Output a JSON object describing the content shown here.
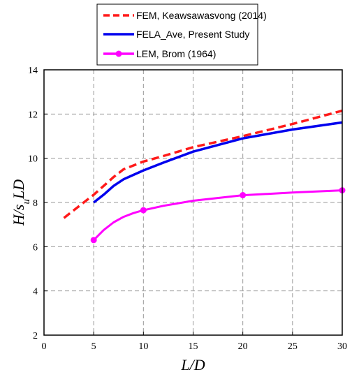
{
  "chart_data": {
    "type": "line",
    "xlim": [
      0,
      30
    ],
    "ylim": [
      2,
      14
    ],
    "xticks": [
      0,
      5,
      10,
      15,
      20,
      25,
      30
    ],
    "yticks": [
      2,
      4,
      6,
      8,
      10,
      12,
      14
    ],
    "xlabel": "L/D",
    "ylabel": "H/s_u LD",
    "ylabel_parts": {
      "pre": "H/s",
      "sub": "u",
      "post": "LD"
    },
    "grid": true,
    "legend_position": "top-center",
    "series": [
      {
        "name": "FEM, Keawsawasvong (2014)",
        "color": "#ff1a1a",
        "style": "dashed",
        "x": [
          2,
          3,
          4,
          5,
          6,
          7,
          8,
          10,
          12,
          15,
          20,
          25,
          30
        ],
        "y": [
          7.3,
          7.65,
          8.0,
          8.35,
          8.75,
          9.15,
          9.5,
          9.85,
          10.1,
          10.5,
          11.0,
          11.55,
          12.15
        ]
      },
      {
        "name": "FELA_Ave, Present Study",
        "color": "#0000ee",
        "style": "solid",
        "x": [
          5,
          6,
          7,
          8,
          10,
          12,
          15,
          20,
          25,
          30
        ],
        "y": [
          8.0,
          8.35,
          8.75,
          9.05,
          9.45,
          9.8,
          10.3,
          10.9,
          11.3,
          11.62
        ]
      },
      {
        "name": "LEM, Brom (1964)",
        "color": "#ff00ff",
        "style": "solid-marker",
        "x": [
          5,
          10,
          20,
          30
        ],
        "y": [
          6.3,
          7.65,
          8.33,
          8.55
        ],
        "curve_x": [
          5,
          6,
          7,
          8,
          9,
          10,
          12,
          15,
          20,
          25,
          30
        ],
        "curve_y": [
          6.3,
          6.75,
          7.1,
          7.35,
          7.52,
          7.65,
          7.85,
          8.08,
          8.33,
          8.45,
          8.55
        ]
      }
    ]
  }
}
